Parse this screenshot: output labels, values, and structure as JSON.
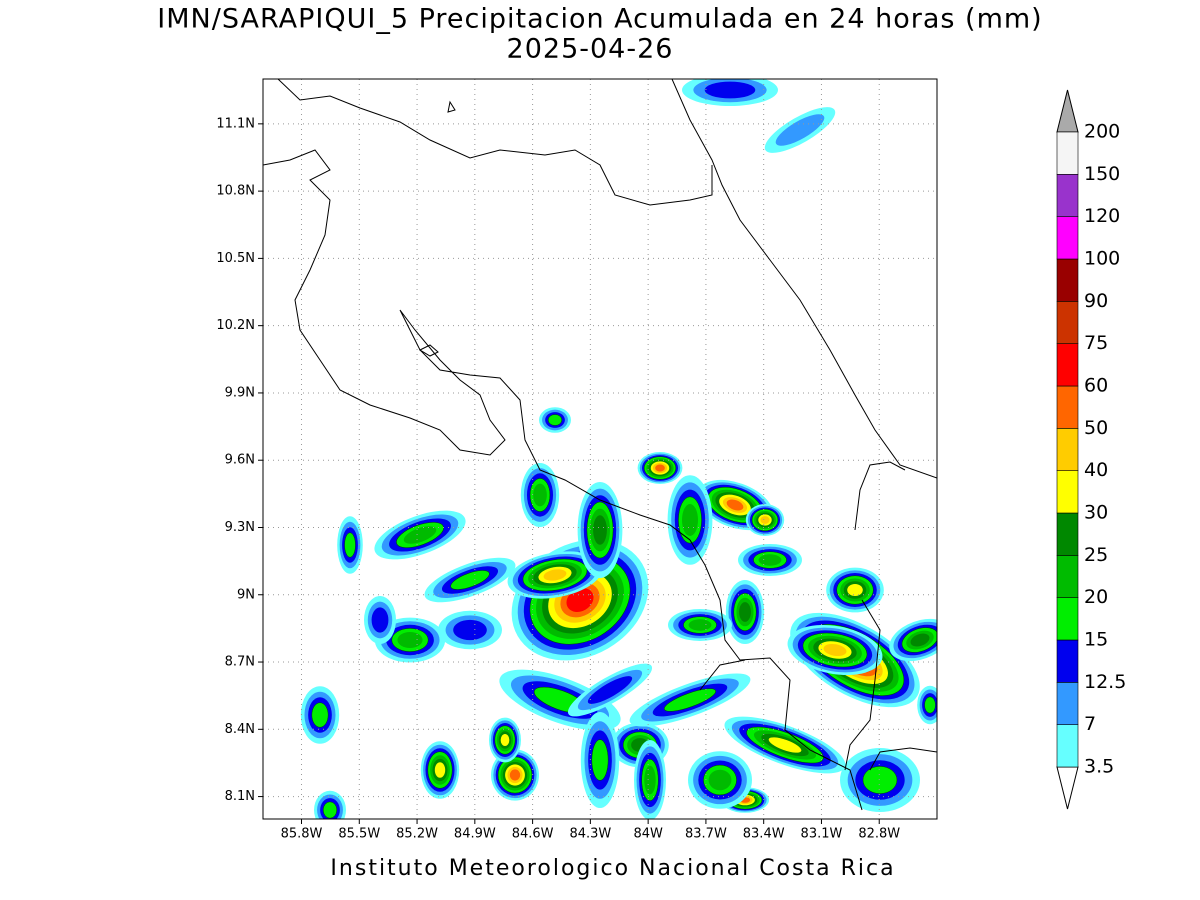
{
  "map": {
    "title": "IMN/SARAPIQUI_5 Precipitacion Acumulada en 24 horas (mm)",
    "subtitle": "2025-04-26",
    "footer": "Instituto Meteorologico Nacional Costa Rica",
    "xlim": [
      -86.0,
      -82.5
    ],
    "ylim": [
      8.0,
      11.3
    ],
    "xticks": [
      {
        "value": -85.8,
        "label": "85.8W"
      },
      {
        "value": -85.5,
        "label": "85.5W"
      },
      {
        "value": -85.2,
        "label": "85.2W"
      },
      {
        "value": -84.9,
        "label": "84.9W"
      },
      {
        "value": -84.6,
        "label": "84.6W"
      },
      {
        "value": -84.3,
        "label": "84.3W"
      },
      {
        "value": -84.0,
        "label": "84W"
      },
      {
        "value": -83.7,
        "label": "83.7W"
      },
      {
        "value": -83.4,
        "label": "83.4W"
      },
      {
        "value": -83.1,
        "label": "83.1W"
      },
      {
        "value": -82.8,
        "label": "82.8W"
      }
    ],
    "yticks": [
      {
        "value": 8.1,
        "label": "8.1N"
      },
      {
        "value": 8.4,
        "label": "8.4N"
      },
      {
        "value": 8.7,
        "label": "8.7N"
      },
      {
        "value": 9.0,
        "label": "9N"
      },
      {
        "value": 9.3,
        "label": "9.3N"
      },
      {
        "value": 9.6,
        "label": "9.6N"
      },
      {
        "value": 9.9,
        "label": "9.9N"
      },
      {
        "value": 10.2,
        "label": "10.2N"
      },
      {
        "value": 10.5,
        "label": "10.5N"
      },
      {
        "value": 10.8,
        "label": "10.8N"
      },
      {
        "value": 11.1,
        "label": "11.1N"
      }
    ],
    "grid": true,
    "colorbar": {
      "levels": [
        3.5,
        7,
        12.5,
        15,
        20,
        25,
        30,
        40,
        50,
        60,
        75,
        90,
        100,
        120,
        150,
        200
      ],
      "colors": [
        "#66ffff",
        "#3399ff",
        "#0000ee",
        "#00ee00",
        "#00bb00",
        "#008800",
        "#ffff00",
        "#ffcc00",
        "#ff6600",
        "#ff0000",
        "#cc3300",
        "#990000",
        "#ff00ff",
        "#9933cc",
        "#f5f5f5"
      ],
      "over_color": "#aaaaaa",
      "under_color": "#ffffff"
    }
  }
}
